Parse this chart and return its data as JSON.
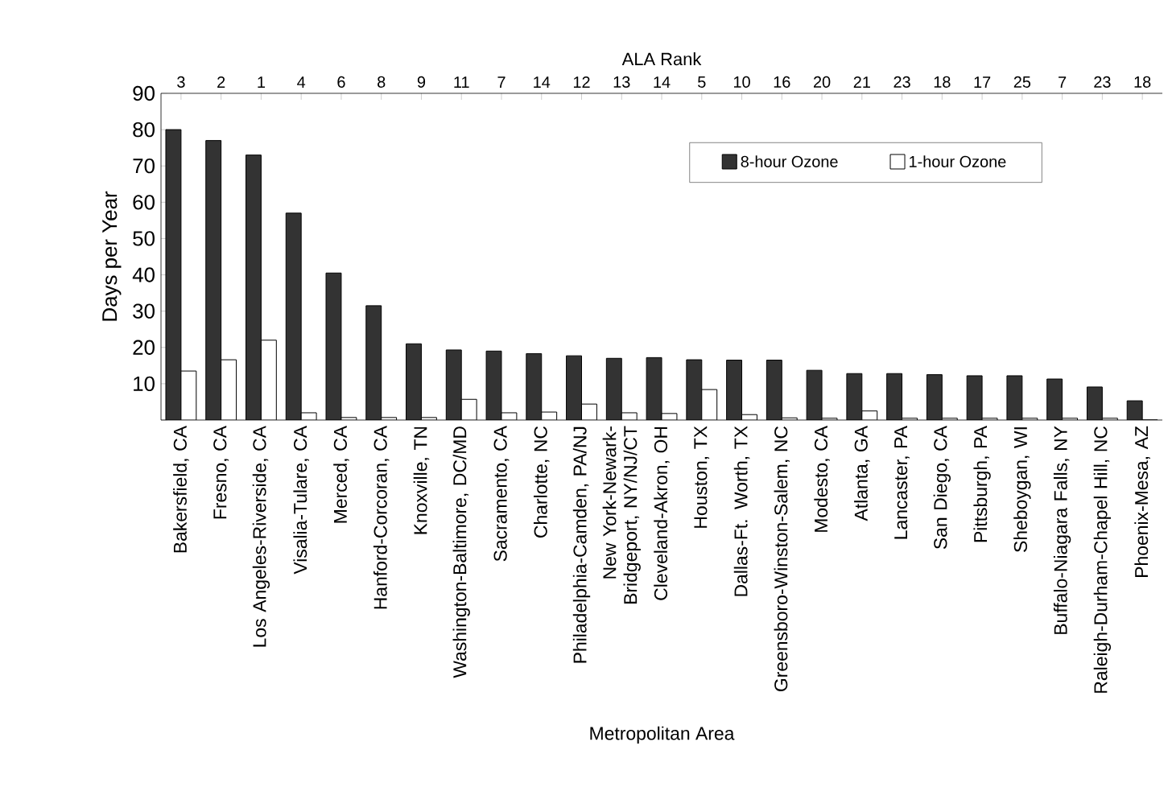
{
  "chart_data": {
    "type": "bar",
    "xlabel": "Metropolitan Area",
    "ylabel": "Days per Year",
    "x2label": "ALA Rank",
    "categories": [
      "Bakersfield, CA",
      "Fresno, CA",
      "Los Angeles-Riverside, CA",
      "Visalia-Tulare, CA",
      "Merced, CA",
      "Hanford-Corcoran, CA",
      "Knoxville, TN",
      "Washington-Baltimore, DC/MD",
      "Sacramento, CA",
      "Charlotte, NC",
      "Philadelphia-Camden, PA/NJ",
      "New York-Newark-Bridgeport, NY/NJ/CT",
      "Cleveland-Akron, OH",
      "Houston, TX",
      "Dallas-Ft. Worth, TX",
      "Greensboro-Winston-Salem, NC",
      "Modesto, CA",
      "Atlanta, GA",
      "Lancaster, PA",
      "San Diego, CA",
      "Pittsburgh, PA",
      "Sheboygan, WI",
      "Buffalo-Niagara Falls, NY",
      "Raleigh-Durham-Chapel Hill, NC",
      "Phoenix-Mesa, AZ"
    ],
    "series": [
      {
        "name": "8-hour Ozone",
        "color": "#333333",
        "values": [
          80,
          77,
          73,
          57,
          40.5,
          31.5,
          21,
          19.3,
          19,
          18.3,
          17.7,
          17,
          17.2,
          16.6,
          16.5,
          16.5,
          13.7,
          12.8,
          12.8,
          12.5,
          12.2,
          12.2,
          11.3,
          9.1,
          5.3
        ]
      },
      {
        "name": "1-hour Ozone",
        "color": "#ffffff",
        "values": [
          13.5,
          16.6,
          22,
          2,
          0.7,
          0.7,
          0.7,
          5.7,
          2,
          2.2,
          4.4,
          2,
          1.8,
          8.4,
          1.5,
          0.6,
          0.5,
          2.5,
          0.5,
          0.5,
          0.5,
          0.5,
          0.5,
          0.5,
          0
        ]
      }
    ],
    "ylim": [
      0,
      90
    ],
    "yticks": [
      {
        "value": 0,
        "label": null
      },
      10,
      20,
      30,
      40,
      50,
      60,
      70,
      80,
      90
    ],
    "annotations": [
      "3",
      "2",
      "1",
      "4",
      "6",
      "8",
      "9",
      "11",
      "7",
      "14",
      "12",
      "13",
      "14",
      "5",
      "10",
      "16",
      "20",
      "21",
      "23",
      "18",
      "17",
      "25",
      "7",
      "23",
      "18"
    ],
    "legend": "top right",
    "grid": false
  }
}
